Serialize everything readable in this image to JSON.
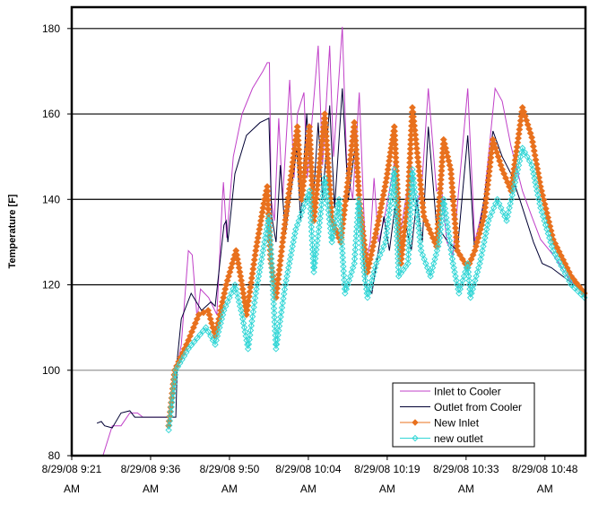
{
  "chart_data": {
    "type": "line",
    "title": "",
    "xlabel": "",
    "ylabel": "Temperature [F]",
    "x_units": "minutes after 8/29/08 9:21 AM",
    "xlim": [
      0,
      93.8
    ],
    "ylim": [
      80,
      185
    ],
    "yticks": [
      80,
      100,
      120,
      140,
      160,
      180
    ],
    "xticks": [
      {
        "x": 0,
        "line1": "8/29/08 9:21",
        "line2": "AM"
      },
      {
        "x": 14.4,
        "line1": "8/29/08 9:36",
        "line2": "AM"
      },
      {
        "x": 28.8,
        "line1": "8/29/08 9:50",
        "line2": "AM"
      },
      {
        "x": 43.2,
        "line1": "8/29/08 10:04",
        "line2": "AM"
      },
      {
        "x": 57.6,
        "line1": "8/29/08 10:19",
        "line2": "AM"
      },
      {
        "x": 72.0,
        "line1": "8/29/08 10:33",
        "line2": "AM"
      },
      {
        "x": 86.4,
        "line1": "8/29/08 10:48",
        "line2": "AM"
      }
    ],
    "grid": true,
    "legend_position": "bottom-right",
    "series": [
      {
        "name": "Inlet to Cooler",
        "color": "#c040c8",
        "marker": "none",
        "points": [
          [
            5.7,
            80
          ],
          [
            7.4,
            87
          ],
          [
            9,
            87
          ],
          [
            10.6,
            90
          ],
          [
            12,
            90
          ],
          [
            13,
            89
          ],
          [
            18,
            89
          ],
          [
            19.1,
            100
          ],
          [
            20,
            106
          ],
          [
            21,
            123
          ],
          [
            21.3,
            128
          ],
          [
            22,
            127
          ],
          [
            22.9,
            112
          ],
          [
            23.5,
            119
          ],
          [
            25,
            117
          ],
          [
            26.5,
            113
          ],
          [
            27.5,
            140
          ],
          [
            27.7,
            144
          ],
          [
            28.3,
            131
          ],
          [
            29.5,
            150
          ],
          [
            31.1,
            160
          ],
          [
            33,
            166
          ],
          [
            34.9,
            170
          ],
          [
            35.7,
            172
          ],
          [
            36.1,
            172
          ],
          [
            36.4,
            140
          ],
          [
            37,
            135
          ],
          [
            37.8,
            159
          ],
          [
            38.5,
            140
          ],
          [
            39.8,
            168
          ],
          [
            40.6,
            145
          ],
          [
            41.2,
            160
          ],
          [
            42.4,
            165
          ],
          [
            43,
            145
          ],
          [
            45,
            176
          ],
          [
            45.8,
            148
          ],
          [
            47.1,
            176
          ],
          [
            47.8,
            150
          ],
          [
            49.4,
            180.4
          ],
          [
            50.2,
            148
          ],
          [
            51.3,
            140
          ],
          [
            52.5,
            165
          ],
          [
            53.7,
            125
          ],
          [
            54.5,
            130
          ],
          [
            55.2,
            145
          ],
          [
            56,
            130
          ],
          [
            57,
            135
          ],
          [
            58,
            142
          ],
          [
            59.1,
            150
          ],
          [
            60,
            132
          ],
          [
            61,
            140
          ],
          [
            62,
            148
          ],
          [
            63,
            138
          ],
          [
            64,
            145
          ],
          [
            65.1,
            166
          ],
          [
            66.6,
            142
          ],
          [
            67.5,
            143
          ],
          [
            68.5,
            130
          ],
          [
            69.6,
            127
          ],
          [
            70.5,
            140
          ],
          [
            72.3,
            166
          ],
          [
            73.6,
            130
          ],
          [
            74.5,
            135
          ],
          [
            75.3,
            140
          ],
          [
            77.3,
            166
          ],
          [
            78.6,
            163
          ],
          [
            80.2,
            152.5
          ],
          [
            82.3,
            142
          ],
          [
            84,
            136
          ],
          [
            85.6,
            130.6
          ],
          [
            87.9,
            127
          ],
          [
            91,
            121
          ],
          [
            93.8,
            118
          ]
        ]
      },
      {
        "name": "Outlet from Cooler",
        "color": "#000033",
        "marker": "none",
        "points": [
          [
            4.6,
            87.6
          ],
          [
            5.4,
            88
          ],
          [
            6,
            87
          ],
          [
            7.4,
            86.5
          ],
          [
            9,
            90
          ],
          [
            10.6,
            90.5
          ],
          [
            11.5,
            89
          ],
          [
            19,
            89
          ],
          [
            19.3,
            103
          ],
          [
            20,
            112
          ],
          [
            21.8,
            118
          ],
          [
            23.7,
            114
          ],
          [
            25.4,
            116
          ],
          [
            26.2,
            115
          ],
          [
            27.8,
            134
          ],
          [
            28.2,
            135
          ],
          [
            28.5,
            130
          ],
          [
            29.8,
            146
          ],
          [
            31.9,
            155
          ],
          [
            34.4,
            158
          ],
          [
            36,
            159
          ],
          [
            36.5,
            136
          ],
          [
            37.3,
            130
          ],
          [
            38.1,
            148
          ],
          [
            39,
            132
          ],
          [
            41.1,
            152
          ],
          [
            41.8,
            135
          ],
          [
            42.9,
            160
          ],
          [
            44,
            138
          ],
          [
            45,
            158
          ],
          [
            45.8,
            140
          ],
          [
            47.1,
            162
          ],
          [
            48,
            138
          ],
          [
            49.4,
            166
          ],
          [
            50.5,
            140
          ],
          [
            52,
            155
          ],
          [
            53,
            130
          ],
          [
            53.7,
            120
          ],
          [
            54.8,
            118
          ],
          [
            56,
            128
          ],
          [
            57,
            136
          ],
          [
            58,
            128
          ],
          [
            59,
            138
          ],
          [
            60,
            126
          ],
          [
            61,
            134
          ],
          [
            62,
            128
          ],
          [
            63,
            140
          ],
          [
            64,
            130
          ],
          [
            65.1,
            157
          ],
          [
            66.6,
            134
          ],
          [
            68.7,
            130
          ],
          [
            70.4,
            128
          ],
          [
            72.3,
            155
          ],
          [
            73.6,
            127
          ],
          [
            75.3,
            140
          ],
          [
            76.9,
            156
          ],
          [
            78.6,
            150
          ],
          [
            80.2,
            146
          ],
          [
            81.8,
            140
          ],
          [
            84.3,
            130
          ],
          [
            85.9,
            125
          ],
          [
            87.6,
            124
          ],
          [
            93.8,
            118
          ]
        ]
      },
      {
        "name": "New Inlet",
        "color": "#e8711e",
        "marker": "diamond-filled",
        "points": [
          [
            17.7,
            87
          ],
          [
            18.8,
            100
          ],
          [
            21.3,
            107
          ],
          [
            23.2,
            113
          ],
          [
            24.9,
            114
          ],
          [
            26.2,
            108
          ],
          [
            28.2,
            120
          ],
          [
            30,
            128
          ],
          [
            31.1,
            120
          ],
          [
            31.9,
            113
          ],
          [
            33.6,
            128
          ],
          [
            35.2,
            140
          ],
          [
            35.7,
            143
          ],
          [
            36.3,
            126
          ],
          [
            37.3,
            117
          ],
          [
            38.5,
            130
          ],
          [
            41.2,
            157
          ],
          [
            42,
            140
          ],
          [
            43.4,
            157
          ],
          [
            44.2,
            135
          ],
          [
            46.2,
            160
          ],
          [
            47.5,
            135
          ],
          [
            49.1,
            130
          ],
          [
            50.5,
            145
          ],
          [
            51.6,
            158
          ],
          [
            52.5,
            140
          ],
          [
            54,
            123
          ],
          [
            56,
            135
          ],
          [
            57.5,
            145
          ],
          [
            58.9,
            157
          ],
          [
            60.1,
            125
          ],
          [
            61.4,
            140
          ],
          [
            62.2,
            161.5
          ],
          [
            64.3,
            136
          ],
          [
            66.6,
            129
          ],
          [
            67.9,
            154
          ],
          [
            69.2,
            147
          ],
          [
            70.4,
            128
          ],
          [
            72.3,
            124
          ],
          [
            73.6,
            128
          ],
          [
            75.3,
            136
          ],
          [
            76.9,
            154
          ],
          [
            78.6,
            147
          ],
          [
            80.2,
            142
          ],
          [
            82.3,
            161.5
          ],
          [
            84,
            154.5
          ],
          [
            85.6,
            143
          ],
          [
            87.9,
            130.6
          ],
          [
            91.2,
            122
          ],
          [
            93.6,
            118
          ]
        ]
      },
      {
        "name": "new outlet",
        "color": "#33d6d6",
        "marker": "diamond-open",
        "points": [
          [
            17.7,
            86
          ],
          [
            19,
            100
          ],
          [
            21.3,
            105
          ],
          [
            24.5,
            110
          ],
          [
            26.2,
            106
          ],
          [
            27.8,
            114
          ],
          [
            29.8,
            120
          ],
          [
            31.1,
            113
          ],
          [
            32.2,
            105
          ],
          [
            33.6,
            118
          ],
          [
            35.2,
            130
          ],
          [
            36,
            136
          ],
          [
            36.5,
            125
          ],
          [
            37.3,
            105
          ],
          [
            39,
            120
          ],
          [
            40.9,
            133
          ],
          [
            43.4,
            142
          ],
          [
            44.2,
            123
          ],
          [
            46.2,
            145
          ],
          [
            47.5,
            130
          ],
          [
            48.8,
            140
          ],
          [
            49.9,
            118
          ],
          [
            51.6,
            125
          ],
          [
            52.4,
            140
          ],
          [
            53.2,
            125
          ],
          [
            54,
            117
          ],
          [
            55.6,
            125
          ],
          [
            57.3,
            130
          ],
          [
            58.9,
            147
          ],
          [
            59.7,
            122
          ],
          [
            61.4,
            125
          ],
          [
            62.2,
            147
          ],
          [
            63.8,
            128
          ],
          [
            65.5,
            122
          ],
          [
            67.1,
            130
          ],
          [
            67.9,
            140
          ],
          [
            69.6,
            125
          ],
          [
            70.7,
            118
          ],
          [
            72.3,
            125
          ],
          [
            72.8,
            117
          ],
          [
            74.5,
            125
          ],
          [
            76.1,
            135
          ],
          [
            77.7,
            140
          ],
          [
            79.4,
            135
          ],
          [
            82.3,
            152
          ],
          [
            84,
            148
          ],
          [
            85.6,
            138
          ],
          [
            87.9,
            128
          ],
          [
            91.2,
            120
          ],
          [
            93.6,
            117
          ]
        ]
      }
    ]
  }
}
